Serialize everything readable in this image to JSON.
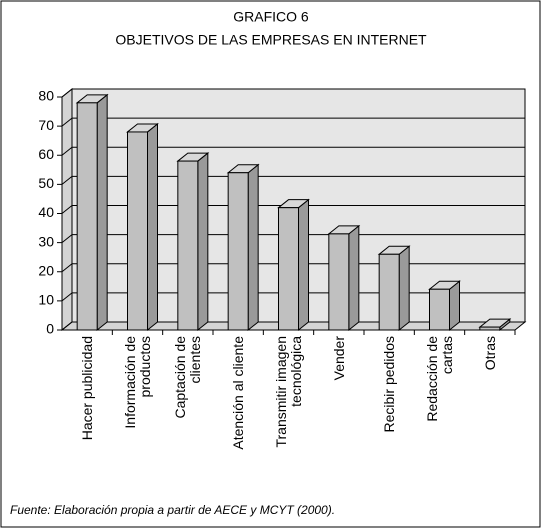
{
  "chart_data": {
    "type": "bar3d",
    "title": "GRAFICO 6",
    "subtitle": "OBJETIVOS DE LAS EMPRESAS EN INTERNET",
    "categories": [
      "Hacer publicidad",
      "Información de productos",
      "Captación de clientes",
      "Atención al cliente",
      "Transmitir imagen tecnológica",
      "Vender",
      "Recibir pedidos",
      "Redacción de cartas",
      "Otras"
    ],
    "values": [
      78,
      68,
      58,
      54,
      42,
      33,
      26,
      14,
      1
    ],
    "color": "#c0c0c0",
    "ylim": [
      0,
      80
    ],
    "yticks": [
      0,
      10,
      20,
      30,
      40,
      50,
      60,
      70,
      80
    ],
    "grid": true,
    "note": "Fuente: Elaboración propia a partir de AECE y MCYT (2000)."
  }
}
